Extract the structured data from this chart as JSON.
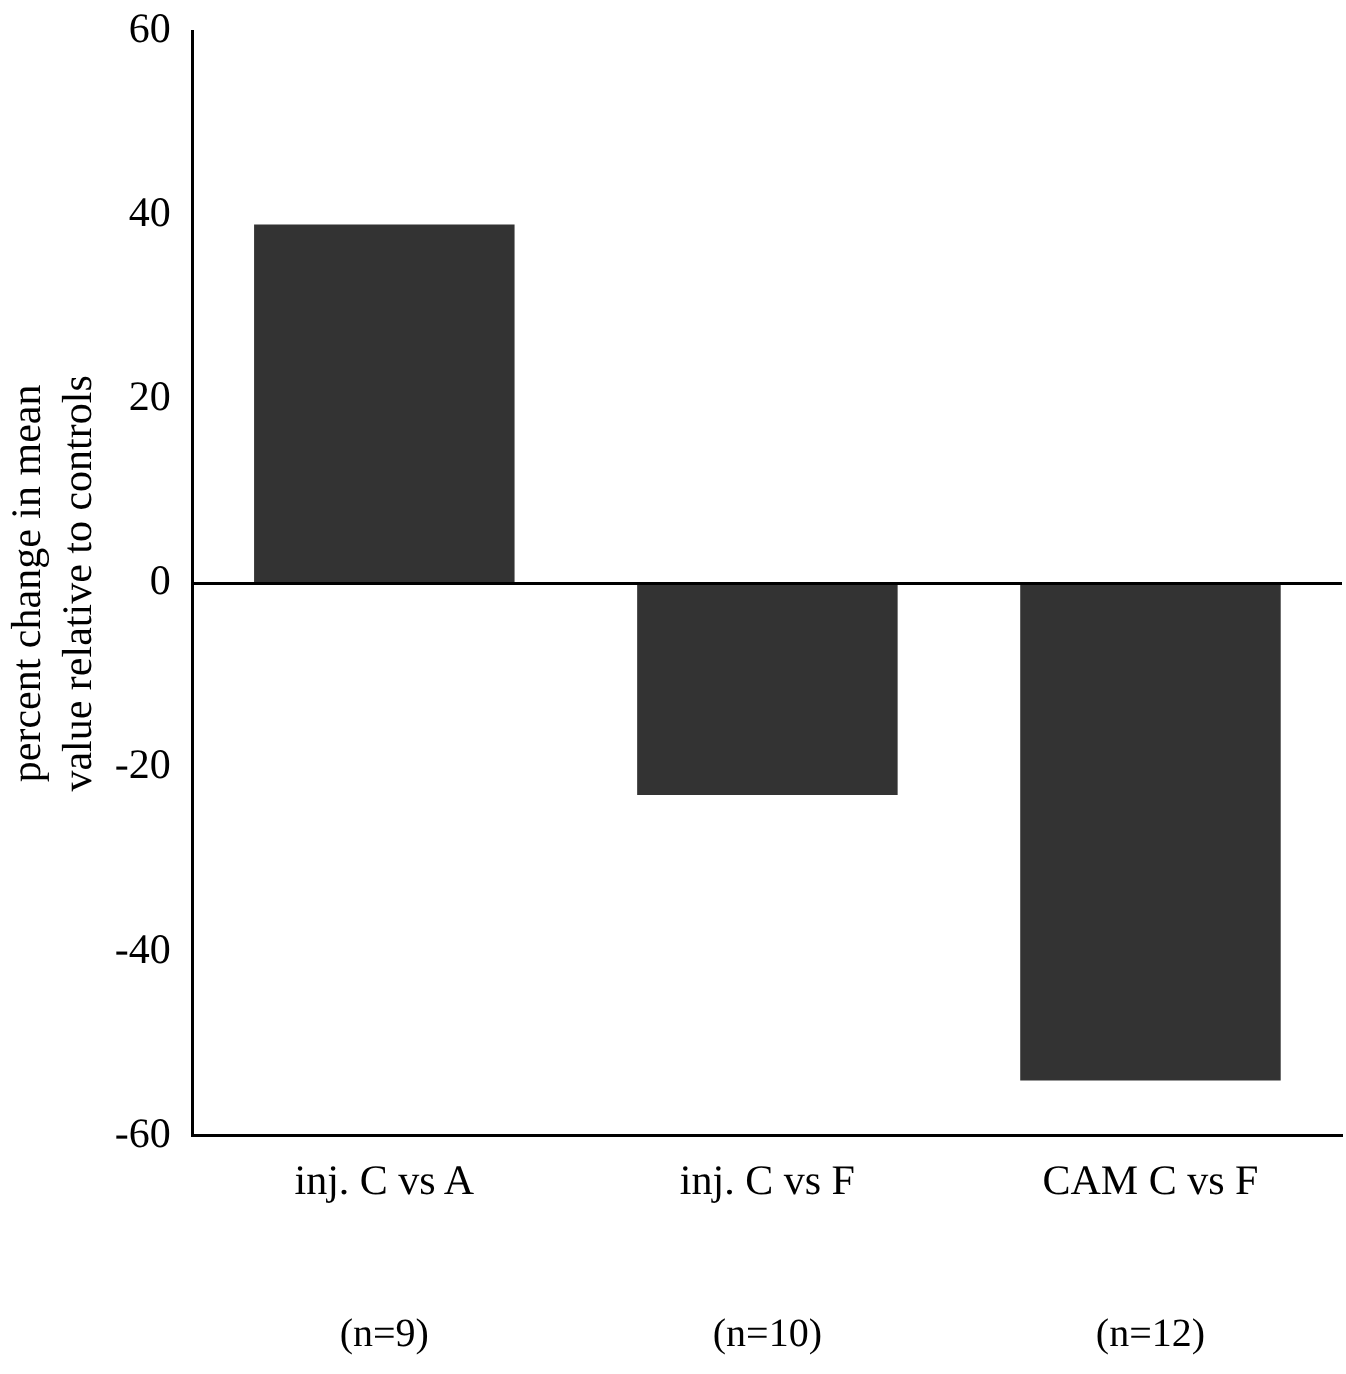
{
  "chart_data": {
    "type": "bar",
    "ylabel": "percent change in mean value relative to controls",
    "categories": [
      "inj. C vs A",
      "inj. C vs F",
      "CAM C vs F"
    ],
    "values": [
      39,
      -23,
      -54
    ],
    "color": "#333333",
    "ylim": [
      -60,
      60
    ],
    "yticks": [
      -60,
      -40,
      -20,
      0,
      20,
      40,
      60
    ],
    "grid": false,
    "ref_lines": [
      {
        "axis": "y",
        "value": 0
      }
    ],
    "annotations": [
      "(n=9)",
      "(n=10)",
      "(n=12)"
    ]
  }
}
